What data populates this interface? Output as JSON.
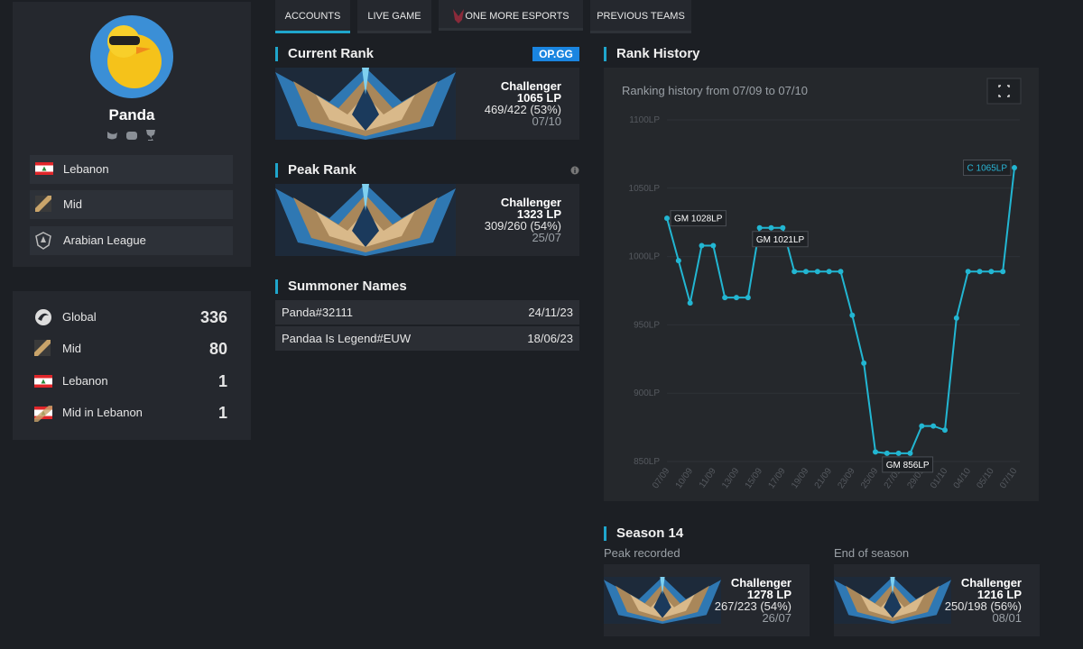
{
  "tabs": [
    "ACCOUNTS",
    "LIVE GAME",
    "ONE MORE ESPORTS",
    "PREVIOUS TEAMS"
  ],
  "profile": {
    "name": "Panda",
    "info": [
      "Lebanon",
      "Mid",
      "Arabian League"
    ]
  },
  "rankings": [
    {
      "label": "Global",
      "value": 336
    },
    {
      "label": "Mid",
      "value": 80
    },
    {
      "label": "Lebanon",
      "value": 1
    },
    {
      "label": "Mid in Lebanon",
      "value": 1
    }
  ],
  "current_rank": {
    "title": "Current Rank",
    "badge": "OP.GG",
    "tier": "Challenger",
    "lp": "1065 LP",
    "record": "469/422 (53%)",
    "date": "07/10"
  },
  "peak_rank": {
    "title": "Peak Rank",
    "tier": "Challenger",
    "lp": "1323 LP",
    "record": "309/260 (54%)",
    "date": "25/07"
  },
  "summoner_names": {
    "title": "Summoner Names",
    "rows": [
      [
        "Panda#32111",
        "24/11/23"
      ],
      [
        "Pandaa Is Legend#EUW",
        "18/06/23"
      ]
    ]
  },
  "season": {
    "title": "Season 14",
    "cards": [
      {
        "label": "Peak recorded",
        "tier": "Challenger",
        "lp": "1278 LP",
        "record": "267/223 (54%)",
        "date": "26/07"
      },
      {
        "label": "End of season",
        "tier": "Challenger",
        "lp": "1216 LP",
        "record": "250/198 (56%)",
        "date": "08/01"
      }
    ]
  },
  "chart_data": {
    "type": "line",
    "title": "Rank History",
    "subtitle": "Ranking history from 07/09 to 07/10",
    "categories": [
      "07/09",
      null,
      "10/09",
      null,
      "11/09",
      null,
      "13/09",
      null,
      "15/09",
      null,
      "17/09",
      null,
      "19/09",
      null,
      "21/09",
      null,
      "23/09",
      null,
      "25/09",
      null,
      "27/09",
      null,
      "29/09",
      null,
      "01/10",
      null,
      "04/10",
      null,
      "05/10",
      null,
      "07/10"
    ],
    "values": [
      1028,
      997,
      966,
      1008,
      1008,
      970,
      970,
      970,
      1021,
      1021,
      1021,
      989,
      989,
      989,
      989,
      989,
      957,
      922,
      857,
      856,
      856,
      856,
      876,
      876,
      873,
      955,
      989,
      989,
      989,
      989,
      1065
    ],
    "color": "#22b6d2",
    "ylim": [
      850,
      1100
    ],
    "yticks": [
      {
        "value": 850,
        "label": "850LP"
      },
      {
        "value": 900,
        "label": "900LP"
      },
      {
        "value": 950,
        "label": "950LP"
      },
      {
        "value": 1000,
        "label": "1000LP"
      },
      {
        "value": 1050,
        "label": "1050LP"
      },
      {
        "value": 1100,
        "label": "1100LP"
      }
    ],
    "grid": true,
    "annotations": [
      {
        "value": 1028,
        "label": "GM 1028LP",
        "color": "#ffffff"
      },
      {
        "value": 1021,
        "label": "GM 1021LP",
        "color": "#ffffff"
      },
      {
        "value": 856,
        "label": "GM 856LP",
        "color": "#ffffff"
      },
      {
        "value": 1065,
        "label": "C 1065LP",
        "color": "#29b6d6"
      }
    ]
  }
}
